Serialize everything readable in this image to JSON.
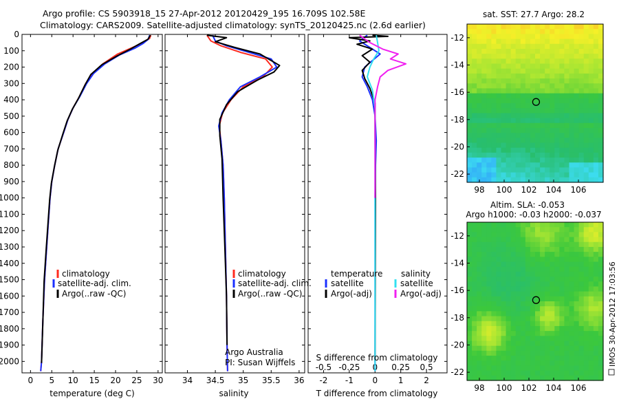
{
  "header": {
    "line1": "Argo profile: CS 5903918_15 27-Apr-2012 20120429_195 16.709S 102.58E",
    "line2": "Climatology: CARS2009. Satellite-adjusted climatology: synTS_20120425.nc (2.6d earlier)"
  },
  "side_label": "IMOS 30-Apr-2012 17:03:56",
  "colors": {
    "climatology": "#ff2a1f",
    "satellite": "#1a2fff",
    "argo": "#000000",
    "satellite_salinity": "#33e0f0",
    "argo_salinity_adj": "#f020f0"
  },
  "chart_data": [
    {
      "type": "line",
      "id": "temperature",
      "xlabel": "temperature (deg C)",
      "xlim": [
        -2,
        31
      ],
      "xticks": [
        0,
        5,
        10,
        15,
        20,
        25,
        30
      ],
      "ylim": [
        2070,
        0
      ],
      "yticks": [
        0,
        100,
        200,
        300,
        400,
        500,
        600,
        700,
        800,
        900,
        1000,
        1100,
        1200,
        1300,
        1400,
        1500,
        1600,
        1700,
        1800,
        1900,
        2000
      ],
      "legend": [
        "climatology",
        "satellite-adj. clim.",
        "Argo(..raw -QC)"
      ],
      "series": [
        {
          "name": "climatology",
          "color": "#ff2a1f",
          "points": [
            [
              28.3,
              5
            ],
            [
              28.0,
              25
            ],
            [
              26.5,
              50
            ],
            [
              24.0,
              80
            ],
            [
              20.5,
              120
            ],
            [
              17.0,
              180
            ],
            [
              14.5,
              240
            ],
            [
              13.0,
              300
            ],
            [
              11.5,
              380
            ],
            [
              10.0,
              450
            ],
            [
              8.8,
              520
            ],
            [
              7.8,
              600
            ],
            [
              6.5,
              700
            ],
            [
              5.7,
              800
            ],
            [
              5.0,
              900
            ],
            [
              4.6,
              1000
            ],
            [
              4.2,
              1150
            ],
            [
              3.8,
              1300
            ],
            [
              3.3,
              1500
            ],
            [
              2.9,
              1750
            ],
            [
              2.6,
              2000
            ],
            [
              2.4,
              2060
            ]
          ]
        },
        {
          "name": "satellite-adj. clim.",
          "color": "#1a2fff",
          "points": [
            [
              28.0,
              5
            ],
            [
              27.7,
              30
            ],
            [
              26.5,
              55
            ],
            [
              24.5,
              85
            ],
            [
              21.0,
              125
            ],
            [
              17.5,
              180
            ],
            [
              14.8,
              240
            ],
            [
              13.2,
              300
            ],
            [
              11.6,
              380
            ],
            [
              10.0,
              450
            ],
            [
              8.8,
              520
            ],
            [
              7.8,
              600
            ],
            [
              6.5,
              700
            ],
            [
              5.7,
              800
            ],
            [
              5.0,
              900
            ],
            [
              4.6,
              1000
            ],
            [
              4.2,
              1150
            ],
            [
              3.8,
              1300
            ],
            [
              3.3,
              1500
            ],
            [
              2.9,
              1750
            ],
            [
              2.6,
              2000
            ],
            [
              2.4,
              2060
            ]
          ]
        },
        {
          "name": "Argo(..raw -QC)",
          "color": "#000000",
          "points": [
            [
              28.2,
              5
            ],
            [
              27.6,
              30
            ],
            [
              25.5,
              60
            ],
            [
              23.5,
              90
            ],
            [
              20.5,
              130
            ],
            [
              16.8,
              185
            ],
            [
              14.2,
              245
            ],
            [
              12.8,
              310
            ],
            [
              11.3,
              390
            ],
            [
              9.8,
              460
            ],
            [
              8.6,
              530
            ],
            [
              7.6,
              610
            ],
            [
              6.4,
              710
            ],
            [
              5.6,
              810
            ],
            [
              4.9,
              910
            ],
            [
              4.5,
              1010
            ],
            [
              4.1,
              1160
            ],
            [
              3.7,
              1310
            ],
            [
              3.2,
              1510
            ],
            [
              2.9,
              1760
            ],
            [
              2.6,
              2010
            ]
          ]
        }
      ]
    },
    {
      "type": "line",
      "id": "salinity",
      "xlabel": "salinity",
      "xlim": [
        33.6,
        36.1
      ],
      "xticks": [
        34,
        34.5,
        35,
        35.5,
        36
      ],
      "ylim": [
        2070,
        0
      ],
      "legend": [
        "climatology",
        "satellite-adj. clim.",
        "Argo(..raw -QC)"
      ],
      "annotation": [
        "Argo Australia",
        "PI: Susan Wijffels"
      ],
      "series": [
        {
          "name": "climatology",
          "color": "#ff2a1f",
          "points": [
            [
              34.35,
              5
            ],
            [
              34.42,
              40
            ],
            [
              34.6,
              70
            ],
            [
              34.95,
              110
            ],
            [
              35.4,
              150
            ],
            [
              35.52,
              200
            ],
            [
              35.35,
              260
            ],
            [
              35.0,
              320
            ],
            [
              34.78,
              400
            ],
            [
              34.63,
              480
            ],
            [
              34.57,
              560
            ],
            [
              34.6,
              650
            ],
            [
              34.64,
              800
            ],
            [
              34.66,
              1000
            ],
            [
              34.68,
              1300
            ],
            [
              34.7,
              1600
            ],
            [
              34.71,
              1900
            ],
            [
              34.72,
              2060
            ]
          ]
        },
        {
          "name": "satellite-adj. clim.",
          "color": "#1a2fff",
          "points": [
            [
              34.45,
              5
            ],
            [
              34.5,
              40
            ],
            [
              34.7,
              70
            ],
            [
              35.1,
              110
            ],
            [
              35.5,
              150
            ],
            [
              35.6,
              200
            ],
            [
              35.3,
              260
            ],
            [
              34.95,
              320
            ],
            [
              34.75,
              400
            ],
            [
              34.62,
              480
            ],
            [
              34.56,
              560
            ],
            [
              34.6,
              650
            ],
            [
              34.64,
              800
            ],
            [
              34.66,
              1000
            ],
            [
              34.68,
              1300
            ],
            [
              34.7,
              1600
            ],
            [
              34.71,
              1900
            ],
            [
              34.72,
              2060
            ]
          ]
        },
        {
          "name": "Argo(..raw -QC)",
          "color": "#000000",
          "points": [
            [
              34.35,
              5
            ],
            [
              34.7,
              20
            ],
            [
              34.5,
              45
            ],
            [
              34.85,
              80
            ],
            [
              35.3,
              120
            ],
            [
              35.5,
              160
            ],
            [
              35.65,
              190
            ],
            [
              35.55,
              230
            ],
            [
              35.25,
              280
            ],
            [
              34.9,
              350
            ],
            [
              34.7,
              430
            ],
            [
              34.58,
              520
            ],
            [
              34.58,
              620
            ],
            [
              34.62,
              760
            ],
            [
              34.64,
              1000
            ],
            [
              34.67,
              1300
            ],
            [
              34.7,
              1600
            ],
            [
              34.71,
              1900
            ]
          ]
        }
      ]
    },
    {
      "type": "line",
      "id": "difference",
      "xlabel": "T difference from climatology",
      "xlabel_top": "S difference from climatology",
      "xlim": [
        -2.6,
        2.8
      ],
      "xticks": [
        -2,
        -1,
        0,
        1,
        2
      ],
      "xticks_s": [
        "-0.5",
        "-0.25",
        "0",
        "0.25",
        "0.5"
      ],
      "ylim": [
        2070,
        0
      ],
      "legend_temperature": [
        "temperature",
        "satellite",
        "Argo(-adj)"
      ],
      "legend_salinity": [
        "salinity",
        "satellite",
        "Argo(-adj)"
      ],
      "series": [
        {
          "name": "T satellite",
          "color": "#1a2fff",
          "points": [
            [
              -0.3,
              5
            ],
            [
              -0.6,
              40
            ],
            [
              -0.2,
              80
            ],
            [
              0.2,
              120
            ],
            [
              -0.1,
              160
            ],
            [
              -0.4,
              200
            ],
            [
              -0.5,
              260
            ],
            [
              -0.3,
              320
            ],
            [
              -0.1,
              400
            ],
            [
              0.0,
              500
            ],
            [
              0.05,
              650
            ],
            [
              0.02,
              800
            ],
            [
              0.0,
              1000
            ],
            [
              0.0,
              2060
            ]
          ]
        },
        {
          "name": "T Argo(-adj)",
          "color": "#000000",
          "points": [
            [
              -0.1,
              5
            ],
            [
              0.5,
              12
            ],
            [
              -1.0,
              20
            ],
            [
              -0.2,
              40
            ],
            [
              -0.7,
              60
            ],
            [
              -0.1,
              90
            ],
            [
              -0.5,
              130
            ],
            [
              -0.2,
              170
            ],
            [
              -0.5,
              220
            ],
            [
              -0.4,
              270
            ],
            [
              -0.2,
              330
            ],
            [
              0.0,
              420
            ],
            [
              0.0,
              600
            ],
            [
              0.02,
              1000
            ],
            [
              0.0,
              2000
            ]
          ]
        },
        {
          "name": "S satellite",
          "color": "#33e0f0",
          "points": [
            [
              0.05,
              5
            ],
            [
              0.1,
              50
            ],
            [
              0.15,
              100
            ],
            [
              -0.05,
              150
            ],
            [
              -0.2,
              200
            ],
            [
              -0.3,
              260
            ],
            [
              -0.1,
              340
            ],
            [
              0.0,
              450
            ],
            [
              0.0,
              700
            ],
            [
              0.0,
              1000
            ],
            [
              0.0,
              2060
            ]
          ]
        },
        {
          "name": "S Argo(-adj)",
          "color": "#f020f0",
          "points": [
            [
              -0.6,
              5
            ],
            [
              -0.2,
              50
            ],
            [
              0.3,
              90
            ],
            [
              0.9,
              120
            ],
            [
              0.6,
              150
            ],
            [
              1.2,
              180
            ],
            [
              0.5,
              220
            ],
            [
              0.2,
              260
            ],
            [
              0.1,
              320
            ],
            [
              0.0,
              400
            ],
            [
              0.0,
              1000
            ]
          ]
        }
      ]
    },
    {
      "type": "heatmap",
      "id": "sst_map",
      "title": "sat. SST: 27.7 Argo: 28.2",
      "xlim": [
        97,
        108
      ],
      "ylim": [
        -22.6,
        -11
      ],
      "xticks": [
        98,
        100,
        102,
        104,
        106
      ],
      "yticks": [
        -12,
        -14,
        -16,
        -18,
        -20,
        -22
      ],
      "argo_position": [
        102.58,
        -16.709
      ]
    },
    {
      "type": "heatmap",
      "id": "sla_map",
      "title_line1": "Altim. SLA: -0.053",
      "title_line2": "Argo h1000: -0.03 h2000: -0.037",
      "xlim": [
        97,
        108
      ],
      "ylim": [
        -22.6,
        -11
      ],
      "xticks": [
        98,
        100,
        102,
        104,
        106
      ],
      "yticks": [
        -12,
        -14,
        -16,
        -18,
        -20,
        -22
      ],
      "argo_position": [
        102.58,
        -16.709
      ]
    }
  ]
}
